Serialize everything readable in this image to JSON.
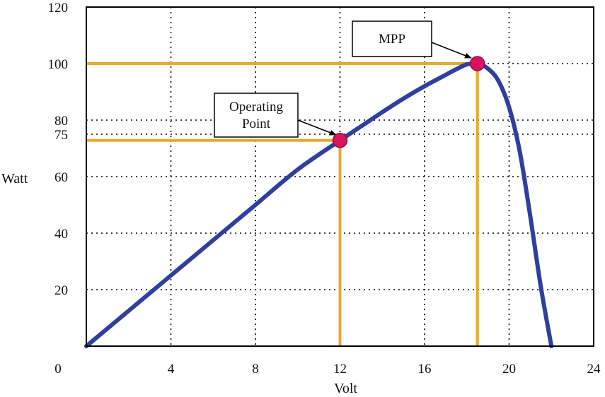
{
  "chart_data": {
    "type": "line",
    "title": "",
    "xlabel": "Volt",
    "ylabel": "Watt",
    "xlim": [
      0,
      24
    ],
    "ylim": [
      0,
      120
    ],
    "x_ticks": [
      4,
      8,
      12,
      16,
      20,
      24
    ],
    "y_ticks": [
      20,
      40,
      60,
      75,
      80,
      100,
      120
    ],
    "origin_label": "0",
    "grid": true,
    "curve_color": "#2e3f9e",
    "guide_color": "#e8a82c",
    "marker_color": "#d6145f",
    "series": [
      {
        "x": [
          0,
          2,
          4,
          6,
          8,
          10,
          12,
          13,
          14,
          15,
          16,
          17,
          17.5,
          18,
          18.5,
          19,
          19.5,
          20,
          20.5,
          21,
          21.5,
          22
        ],
        "y": [
          0,
          12.5,
          25,
          37.5,
          50,
          62.5,
          72.8,
          77.8,
          82.8,
          87.6,
          92,
          96,
          98,
          99.7,
          100,
          98.2,
          93.8,
          84.5,
          69,
          46,
          21,
          0
        ]
      }
    ],
    "points": [
      {
        "x": 12,
        "y": 72.8
      },
      {
        "x": 18.5,
        "y": 100
      }
    ],
    "annotations": [
      {
        "text": [
          "Operating",
          "Point"
        ],
        "target_point": 0
      },
      {
        "text": [
          "MPP"
        ],
        "target_point": 1
      }
    ]
  }
}
